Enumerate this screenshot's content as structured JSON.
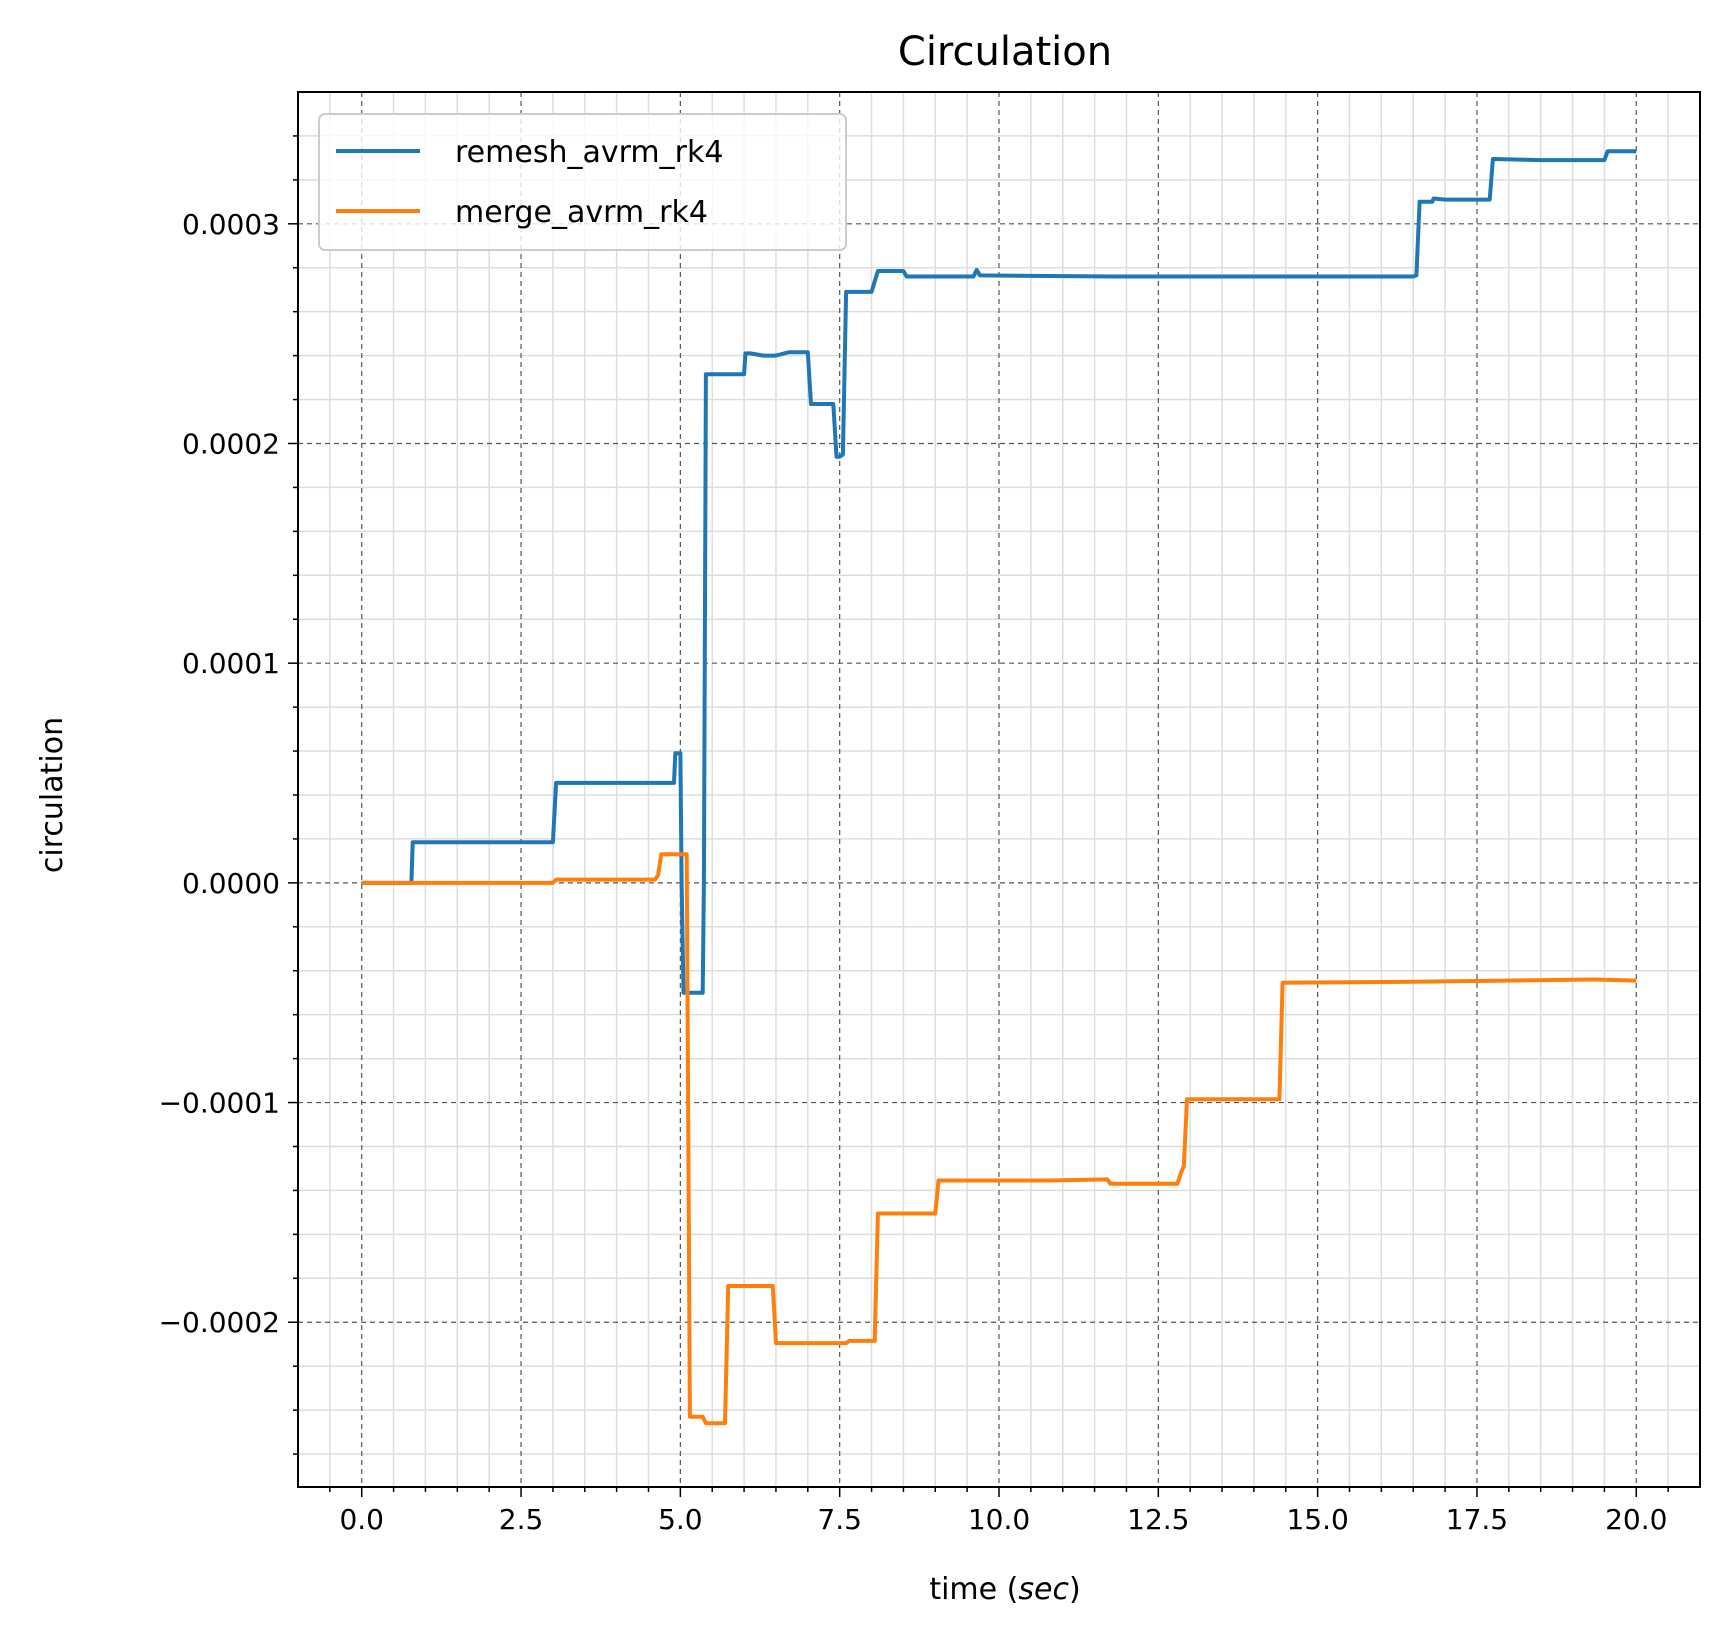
{
  "chart_data": {
    "type": "line",
    "title": "Circulation",
    "xlabel": "time",
    "xlabel_unit": "sec",
    "ylabel": "circulation",
    "xlim": [
      -1.0,
      21.0
    ],
    "ylim": [
      -0.000275,
      0.00036
    ],
    "x_ticks": [
      0.0,
      2.5,
      5.0,
      7.5,
      10.0,
      12.5,
      15.0,
      17.5,
      20.0
    ],
    "x_tick_labels": [
      "0.0",
      "2.5",
      "5.0",
      "7.5",
      "10.0",
      "12.5",
      "15.0",
      "17.5",
      "20.0"
    ],
    "y_ticks": [
      -0.0002,
      -0.0001,
      0.0,
      0.0001,
      0.0002,
      0.0003
    ],
    "y_tick_labels": [
      "−0.0002",
      "−0.0001",
      "0.0000",
      "0.0001",
      "0.0002",
      "0.0003"
    ],
    "grid": "major dashed, minor light solid",
    "legend_position": "upper left",
    "series": [
      {
        "name": "remesh_avrm_rk4",
        "color": "#1f77b4",
        "x": [
          0.0,
          0.78,
          0.8,
          3.0,
          3.05,
          4.9,
          4.92,
          5.0,
          5.02,
          5.05,
          5.35,
          5.37,
          5.4,
          6.0,
          6.02,
          6.1,
          6.3,
          6.5,
          6.7,
          7.0,
          7.05,
          7.4,
          7.45,
          7.5,
          7.55,
          7.6,
          7.65,
          8.0,
          8.1,
          8.5,
          8.55,
          9.6,
          9.65,
          9.7,
          11.8,
          16.5,
          16.55,
          16.6,
          16.8,
          16.82,
          17.0,
          17.7,
          17.75,
          18.5,
          19.5,
          19.55,
          20.0
        ],
        "y": [
          0.0,
          0.0,
          1.85e-05,
          1.85e-05,
          4.55e-05,
          4.55e-05,
          5.9e-05,
          5.9e-05,
          0.0,
          -5e-05,
          -5e-05,
          0.0,
          0.0002315,
          0.0002315,
          0.000241,
          0.000241,
          0.00024,
          0.00024,
          0.0002415,
          0.0002415,
          0.000218,
          0.000218,
          0.000194,
          0.000194,
          0.000195,
          0.000269,
          0.000269,
          0.000269,
          0.0002785,
          0.0002785,
          0.000276,
          0.000276,
          0.000279,
          0.0002765,
          0.000276,
          0.000276,
          0.0002765,
          0.00031,
          0.00031,
          0.0003115,
          0.000311,
          0.000311,
          0.0003295,
          0.000329,
          0.000329,
          0.000333,
          0.000333
        ]
      },
      {
        "name": "merge_avrm_rk4",
        "color": "#ff7f0e",
        "x": [
          0.0,
          2.2,
          3.0,
          3.05,
          4.6,
          4.65,
          4.7,
          5.1,
          5.15,
          5.2,
          5.35,
          5.4,
          5.7,
          5.75,
          6.1,
          6.45,
          6.5,
          7.6,
          7.65,
          8.05,
          8.1,
          9.0,
          9.05,
          10.8,
          11.7,
          11.75,
          12.8,
          12.85,
          12.9,
          12.95,
          14.4,
          14.45,
          16.5,
          19.3,
          19.35,
          20.0
        ],
        "y": [
          0.0,
          0.0,
          0.0,
          1.5e-06,
          1.5e-06,
          3.5e-06,
          1.3e-05,
          1.3e-05,
          -0.000243,
          -0.000243,
          -0.000243,
          -0.000246,
          -0.000246,
          -0.0001835,
          -0.0001835,
          -0.0001835,
          -0.0002095,
          -0.0002095,
          -0.0002085,
          -0.0002085,
          -0.0001505,
          -0.0001505,
          -0.0001355,
          -0.0001355,
          -0.000135,
          -0.000137,
          -0.000137,
          -0.0001325,
          -0.000129,
          -9.85e-05,
          -9.85e-05,
          -4.55e-05,
          -4.5e-05,
          -4.4e-05,
          -4.4e-05,
          -4.45e-05
        ]
      }
    ]
  }
}
